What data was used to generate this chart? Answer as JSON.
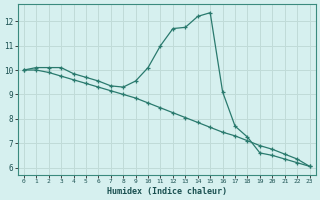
{
  "title": "",
  "xlabel": "Humidex (Indice chaleur)",
  "background_color": "#d6f0ef",
  "grid_color": "#c0dbd8",
  "line_color": "#2a7a6e",
  "xlim": [
    -0.5,
    23.5
  ],
  "ylim": [
    5.7,
    12.7
  ],
  "yticks": [
    6,
    7,
    8,
    9,
    10,
    11,
    12
  ],
  "xticks": [
    0,
    1,
    2,
    3,
    4,
    5,
    6,
    7,
    8,
    9,
    10,
    11,
    12,
    13,
    14,
    15,
    16,
    17,
    18,
    19,
    20,
    21,
    22,
    23
  ],
  "series1_x": [
    0,
    1,
    2,
    3,
    4,
    5,
    6,
    7,
    8,
    9,
    10,
    11,
    12,
    13,
    14,
    15,
    16,
    17,
    18,
    19,
    20,
    21,
    22,
    23
  ],
  "series1_y": [
    10.0,
    10.1,
    10.1,
    10.1,
    9.85,
    9.7,
    9.55,
    9.35,
    9.3,
    9.55,
    10.1,
    11.0,
    11.7,
    11.75,
    12.2,
    12.35,
    9.1,
    7.7,
    7.25,
    6.6,
    6.5,
    6.35,
    6.2,
    6.05
  ],
  "series2_x": [
    0,
    1,
    2,
    3,
    4,
    5,
    6,
    7,
    8,
    9,
    10,
    11,
    12,
    13,
    14,
    15,
    16,
    17,
    18,
    19,
    20,
    21,
    22,
    23
  ],
  "series2_y": [
    10.0,
    10.0,
    9.9,
    9.75,
    9.6,
    9.45,
    9.3,
    9.15,
    9.0,
    8.85,
    8.65,
    8.45,
    8.25,
    8.05,
    7.85,
    7.65,
    7.45,
    7.3,
    7.1,
    6.9,
    6.75,
    6.55,
    6.35,
    6.05
  ]
}
